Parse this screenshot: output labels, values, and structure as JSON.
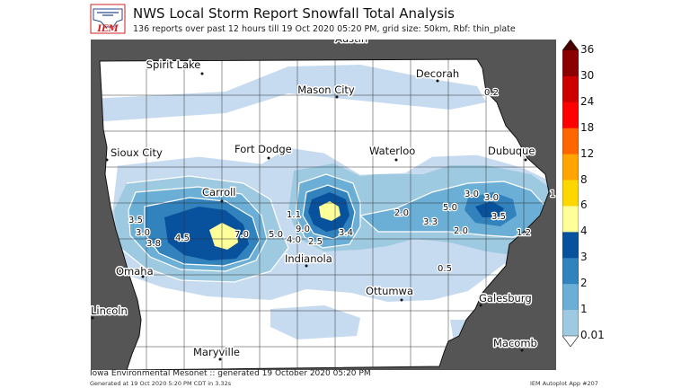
{
  "header": {
    "title": "NWS Local Storm Report Snowfall Total Analysis",
    "subtitle": "136 reports over past 12 hours till 19 Oct 2020 05:20 PM, grid size: 50km, Rbf: thin_plate",
    "logo_text": "IEM"
  },
  "colors": {
    "background_gray": "#555555",
    "water": "#ffffff",
    "level_colors": [
      "#ffffff",
      "#c6dbef",
      "#9ecae1",
      "#6baed6",
      "#3182bd",
      "#08519c",
      "#ffff99",
      "#ffd700",
      "#ffa500",
      "#ff6600",
      "#ff0000",
      "#cc0000",
      "#8b0000",
      "#4b0000"
    ]
  },
  "colorbar": {
    "labels": [
      "36",
      "30",
      "24",
      "18",
      "12",
      "8",
      "6",
      "4",
      "3",
      "2",
      "1",
      "0.01"
    ]
  },
  "cities": [
    {
      "name": "Spirit Lake"
    },
    {
      "name": "Mason City"
    },
    {
      "name": "Decorah"
    },
    {
      "name": "Sioux City"
    },
    {
      "name": "Fort Dodge"
    },
    {
      "name": "Waterloo"
    },
    {
      "name": "Dubuque"
    },
    {
      "name": "Carroll"
    },
    {
      "name": "Omaha"
    },
    {
      "name": "Indianola"
    },
    {
      "name": "Ottumwa"
    },
    {
      "name": "Galesburg"
    },
    {
      "name": "Lincoln"
    },
    {
      "name": "Maryville"
    },
    {
      "name": "Macomb"
    },
    {
      "name": "Austin"
    }
  ],
  "contour_labels": [
    "0.2",
    "3.0",
    "3.0",
    "1",
    "3.5",
    "3.0",
    "3.8",
    "4.5",
    "7.0",
    "5.0",
    "1.1",
    "9.0",
    "4.0",
    "2.5",
    "3.4",
    "2.0",
    "3.3",
    "5.0",
    "2.0",
    "3.5",
    "1.2",
    "0.5"
  ],
  "footer": {
    "line1": "Iowa Environmental Mesonet :: generated 19 October 2020 05:20 PM",
    "line2": "Generated at 19 Oct 2020 5:20 PM CDT in 3.32s",
    "line3": "IEM Autoplot App #207"
  }
}
